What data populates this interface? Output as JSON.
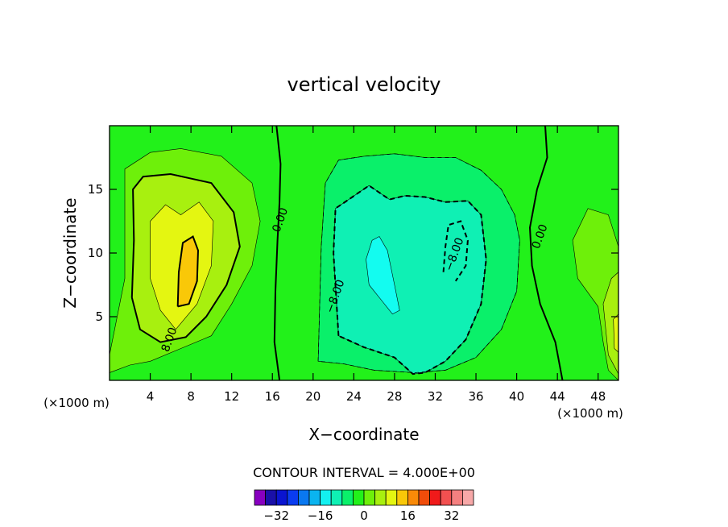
{
  "chart_data": {
    "type": "contour",
    "title": "vertical velocity",
    "xlabel": "X−coordinate",
    "ylabel": "Z−coordinate",
    "x_unit": "(×1000 m)",
    "y_unit": "(×1000 m)",
    "xlim": [
      0,
      50
    ],
    "ylim": [
      0,
      20
    ],
    "x_ticks": [
      4,
      8,
      12,
      16,
      20,
      24,
      28,
      32,
      36,
      40,
      44,
      48
    ],
    "y_ticks": [
      5,
      10,
      15
    ],
    "background_color": "#22f11a",
    "contour_interval_text": "CONTOUR INTERVAL = 4.000E+00",
    "contour_labels": [
      {
        "text": "0.00",
        "x": 17.1,
        "y": 12.5
      },
      {
        "text": "0.00",
        "x": 42.6,
        "y": 11.2
      },
      {
        "text": "8.00",
        "x": 6.2,
        "y": 3.1
      },
      {
        "text": "−8.00",
        "x": 22.5,
        "y": 6.5
      },
      {
        "text": "−8.00",
        "x": 34.2,
        "y": 9.8
      }
    ],
    "regions": [
      {
        "value": 4,
        "color": "#6ef00a",
        "points": [
          [
            0,
            2
          ],
          [
            1.5,
            8
          ],
          [
            1.5,
            16.6
          ],
          [
            4,
            17.9
          ],
          [
            7,
            18.2
          ],
          [
            11,
            17.6
          ],
          [
            14,
            15.5
          ],
          [
            14.8,
            12.5
          ],
          [
            14,
            9
          ],
          [
            12,
            6
          ],
          [
            10,
            3.5
          ],
          [
            7,
            2.5
          ],
          [
            4,
            1.5
          ],
          [
            2,
            1.2
          ],
          [
            0,
            0.6
          ]
        ]
      },
      {
        "value": 8,
        "color": "#a8f00f",
        "points": [
          [
            2.2,
            6.5
          ],
          [
            2.4,
            11
          ],
          [
            2.3,
            15
          ],
          [
            3.3,
            16
          ],
          [
            6,
            16.2
          ],
          [
            10,
            15.5
          ],
          [
            12.2,
            13.2
          ],
          [
            12.8,
            10.5
          ],
          [
            11.5,
            7.5
          ],
          [
            9.5,
            5
          ],
          [
            7.5,
            3.4
          ],
          [
            5,
            3
          ],
          [
            3,
            4
          ]
        ]
      },
      {
        "value": 12,
        "color": "#e4f611",
        "points": [
          [
            4,
            8
          ],
          [
            4,
            12.5
          ],
          [
            5.5,
            13.8
          ],
          [
            7,
            13
          ],
          [
            8.8,
            14
          ],
          [
            10.2,
            12.5
          ],
          [
            10,
            9
          ],
          [
            8.6,
            6
          ],
          [
            6.5,
            4
          ],
          [
            5,
            5.5
          ]
        ]
      },
      {
        "value": 16,
        "color": "#f9c808",
        "points": [
          [
            6.7,
            5.8
          ],
          [
            6.8,
            8.5
          ],
          [
            7.2,
            10.8
          ],
          [
            8.2,
            11.3
          ],
          [
            8.7,
            10.2
          ],
          [
            8.6,
            7.8
          ],
          [
            7.8,
            6
          ]
        ]
      },
      {
        "value": 4,
        "color": "#6ef00a",
        "points": [
          [
            48,
            5.8
          ],
          [
            46,
            8
          ],
          [
            45.5,
            11
          ],
          [
            47,
            13.5
          ],
          [
            49,
            13
          ],
          [
            50,
            10.5
          ],
          [
            50,
            0
          ],
          [
            49,
            0.8
          ],
          [
            48.5,
            3
          ]
        ]
      },
      {
        "value": 8,
        "color": "#a8f00f",
        "points": [
          [
            49,
            2
          ],
          [
            48.5,
            6
          ],
          [
            49.3,
            8
          ],
          [
            50,
            8.5
          ],
          [
            50,
            0.5
          ]
        ]
      },
      {
        "value": 12,
        "color": "#e4f611",
        "points": [
          [
            49.6,
            2.5
          ],
          [
            49.5,
            4.8
          ],
          [
            50,
            5.2
          ],
          [
            50,
            2.2
          ]
        ]
      },
      {
        "value": -4,
        "color": "#0af06a",
        "points": [
          [
            20.5,
            1.5
          ],
          [
            20.8,
            10.5
          ],
          [
            21.2,
            15.5
          ],
          [
            22.5,
            17.3
          ],
          [
            25,
            17.6
          ],
          [
            28,
            17.8
          ],
          [
            31,
            17.5
          ],
          [
            34,
            17.5
          ],
          [
            36.5,
            16.5
          ],
          [
            38.5,
            15
          ],
          [
            39.8,
            13
          ],
          [
            40.3,
            11
          ],
          [
            40,
            7
          ],
          [
            38.5,
            4
          ],
          [
            36,
            1.8
          ],
          [
            33,
            0.8
          ],
          [
            30,
            0.6
          ],
          [
            26,
            0.8
          ],
          [
            23,
            1.3
          ]
        ]
      },
      {
        "value": -8,
        "color": "#0ff0b4",
        "points": [
          [
            22.5,
            3.5
          ],
          [
            22,
            10
          ],
          [
            22.2,
            13.5
          ],
          [
            23.5,
            14.2
          ],
          [
            25.5,
            15.3
          ],
          [
            27.5,
            14.2
          ],
          [
            29,
            14.5
          ],
          [
            31,
            14.4
          ],
          [
            33,
            14
          ],
          [
            35.2,
            14.1
          ],
          [
            36.5,
            13
          ],
          [
            37,
            9.5
          ],
          [
            36.5,
            6
          ],
          [
            35,
            3.2
          ],
          [
            33,
            1.5
          ],
          [
            31,
            0.6
          ],
          [
            29.8,
            0.5
          ],
          [
            28,
            1.8
          ],
          [
            25,
            2.6
          ]
        ]
      },
      {
        "value": -12,
        "color": "#13fcf0",
        "points": [
          [
            25.5,
            7.5
          ],
          [
            25.2,
            9.5
          ],
          [
            25.8,
            11
          ],
          [
            26.5,
            11.3
          ],
          [
            27.3,
            10.2
          ],
          [
            28,
            7.5
          ],
          [
            28.5,
            5.5
          ],
          [
            27.8,
            5.2
          ],
          [
            26.8,
            6.2
          ]
        ]
      }
    ],
    "contour_lines": [
      {
        "level": 0,
        "style": "solid-thick",
        "points": [
          [
            16.7,
            0
          ],
          [
            16.2,
            3
          ],
          [
            16.3,
            7
          ],
          [
            16.5,
            11
          ],
          [
            16.7,
            14
          ],
          [
            16.8,
            17
          ],
          [
            16.4,
            20
          ]
        ]
      },
      {
        "level": 0,
        "style": "solid-thick",
        "points": [
          [
            44.5,
            0
          ],
          [
            43.8,
            3
          ],
          [
            42.3,
            6
          ],
          [
            41.5,
            9
          ],
          [
            41.3,
            12
          ],
          [
            42,
            15
          ],
          [
            43,
            17.5
          ],
          [
            42.8,
            20
          ]
        ]
      },
      {
        "level": 8,
        "style": "solid-thick",
        "points": [
          [
            2.2,
            6.5
          ],
          [
            2.4,
            11
          ],
          [
            2.3,
            15
          ],
          [
            3.3,
            16
          ],
          [
            6,
            16.2
          ],
          [
            10,
            15.5
          ],
          [
            12.2,
            13.2
          ],
          [
            12.8,
            10.5
          ],
          [
            11.5,
            7.5
          ],
          [
            9.5,
            5
          ],
          [
            7.5,
            3.4
          ],
          [
            5,
            3
          ],
          [
            3,
            4
          ],
          [
            2.2,
            6.5
          ]
        ]
      },
      {
        "level": 16,
        "style": "solid-thick",
        "points": [
          [
            6.7,
            5.8
          ],
          [
            6.8,
            8.5
          ],
          [
            7.2,
            10.8
          ],
          [
            8.2,
            11.3
          ],
          [
            8.7,
            10.2
          ],
          [
            8.6,
            7.8
          ],
          [
            7.8,
            6
          ],
          [
            6.7,
            5.8
          ]
        ]
      },
      {
        "level": -8,
        "style": "dashed-thick",
        "points": [
          [
            22.5,
            3.5
          ],
          [
            22,
            10
          ],
          [
            22.2,
            13.5
          ],
          [
            23.5,
            14.2
          ],
          [
            25.5,
            15.3
          ],
          [
            27.5,
            14.2
          ],
          [
            29,
            14.5
          ],
          [
            31,
            14.4
          ],
          [
            33,
            14
          ],
          [
            35.2,
            14.1
          ],
          [
            36.5,
            13
          ],
          [
            37,
            9.5
          ],
          [
            36.5,
            6
          ],
          [
            35,
            3.2
          ],
          [
            33,
            1.5
          ],
          [
            31,
            0.6
          ],
          [
            29.8,
            0.5
          ],
          [
            28,
            1.8
          ],
          [
            25,
            2.6
          ],
          [
            22.5,
            3.5
          ]
        ]
      },
      {
        "level": -8,
        "style": "dashed-thick",
        "points": [
          [
            32.8,
            8.5
          ],
          [
            33,
            10.5
          ],
          [
            33.3,
            12.2
          ],
          [
            34.5,
            12.5
          ],
          [
            35.2,
            11
          ],
          [
            35,
            9
          ],
          [
            34,
            7.8
          ]
        ]
      },
      {
        "level": -4,
        "style": "dashed-thin",
        "points": [
          [
            20.5,
            1.5
          ],
          [
            20.8,
            10.5
          ],
          [
            21.2,
            15.5
          ],
          [
            22.5,
            17.3
          ],
          [
            25,
            17.6
          ],
          [
            28,
            17.8
          ],
          [
            31,
            17.5
          ],
          [
            34,
            17.5
          ],
          [
            36.5,
            16.5
          ],
          [
            38.5,
            15
          ],
          [
            39.8,
            13
          ],
          [
            40.3,
            11
          ],
          [
            40,
            7
          ],
          [
            38.5,
            4
          ],
          [
            36,
            1.8
          ],
          [
            33,
            0.8
          ],
          [
            30,
            0.6
          ],
          [
            26,
            0.8
          ],
          [
            23,
            1.3
          ],
          [
            20.5,
            1.5
          ]
        ]
      }
    ],
    "colorbar": {
      "colors": [
        "#8800c0",
        "#1a10a8",
        "#0a14d0",
        "#0a3cf0",
        "#0a78f0",
        "#0ab4f0",
        "#13f0f0",
        "#0ff0b4",
        "#0af06a",
        "#22f11a",
        "#6ef00a",
        "#a8f00f",
        "#e4f611",
        "#f9c808",
        "#f98a08",
        "#f04c0a",
        "#f01a1a",
        "#f25050",
        "#f58080",
        "#f7a8a8"
      ],
      "tick_labels": [
        "−32",
        "−16",
        "0",
        "16",
        "32"
      ],
      "tick_values": [
        -32,
        -16,
        0,
        16,
        32
      ],
      "min": -40,
      "max": 40
    }
  }
}
